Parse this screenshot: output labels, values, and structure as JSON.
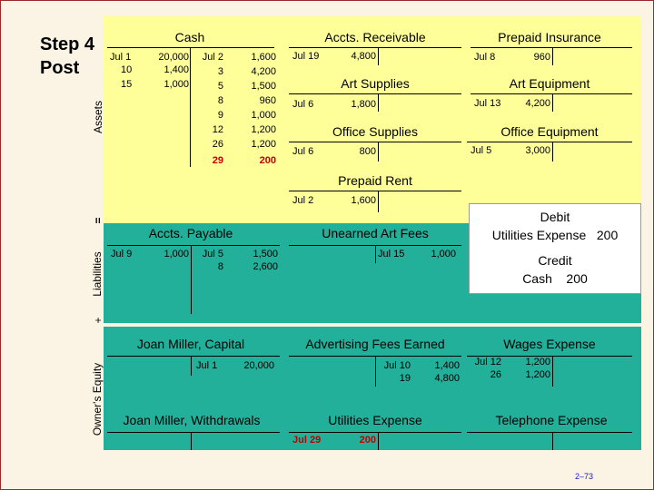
{
  "step": {
    "line1": "Step 4",
    "line2": "Post"
  },
  "side_labels": {
    "assets": "Assets",
    "equals": "=",
    "liabilities": "Liabilities",
    "plus": "+",
    "equity": "Owner's Equity"
  },
  "accounts": {
    "cash": {
      "title": "Cash",
      "debit_dates": [
        "Jul 1",
        "10",
        "15"
      ],
      "debit_amounts": [
        "20,000",
        "1,400",
        "1,000"
      ],
      "credit_dates": [
        "Jul 2",
        "3",
        "5",
        "8",
        "9",
        "12",
        "26"
      ],
      "credit_amounts": [
        "1,600",
        "4,200",
        "1,500",
        "960",
        "1,000",
        "1,200",
        "1,200"
      ],
      "new_credit_date": "29",
      "new_credit_amount": "200"
    },
    "accts_receivable": {
      "title": "Accts. Receivable",
      "debit_date": "Jul 19",
      "debit_amount": "4,800"
    },
    "prepaid_insurance": {
      "title": "Prepaid Insurance",
      "debit_date": "Jul 8",
      "debit_amount": "960"
    },
    "art_supplies": {
      "title": "Art Supplies",
      "debit_date": "Jul 6",
      "debit_amount": "1,800"
    },
    "art_equipment": {
      "title": "Art Equipment",
      "debit_date": "Jul 13",
      "debit_amount": "4,200"
    },
    "office_supplies": {
      "title": "Office Supplies",
      "debit_date": "Jul 6",
      "debit_amount": "800"
    },
    "office_equipment": {
      "title": "Office Equipment",
      "debit_date": "Jul 5",
      "debit_amount": "3,000"
    },
    "prepaid_rent": {
      "title": "Prepaid Rent",
      "debit_date": "Jul 2",
      "debit_amount": "1,600"
    },
    "accts_payable": {
      "title": "Accts. Payable",
      "debit_date": "Jul 9",
      "debit_amount": "1,000",
      "credit_dates": [
        "Jul 5",
        "8"
      ],
      "credit_amounts": [
        "1,500",
        "2,600"
      ]
    },
    "unearned_art_fees": {
      "title": "Unearned Art Fees",
      "credit_date": "Jul 15",
      "credit_amount": "1,000"
    },
    "capital": {
      "title": "Joan Miller, Capital",
      "credit_date": "Jul 1",
      "credit_amount": "20,000"
    },
    "advertising_fees": {
      "title": "Advertising Fees Earned",
      "credit_dates": [
        "Jul 10",
        "19"
      ],
      "credit_amounts": [
        "1,400",
        "4,800"
      ]
    },
    "wages_expense": {
      "title": "Wages Expense",
      "debit_dates": [
        "Jul 12",
        "26"
      ],
      "debit_amounts": [
        "1,200",
        "1,200"
      ]
    },
    "withdrawals": {
      "title": "Joan Miller, Withdrawals"
    },
    "utilities_expense": {
      "title": "Utilities Expense",
      "debit_date": "Jul 29",
      "debit_amount": "200"
    },
    "telephone_expense": {
      "title": "Telephone Expense"
    }
  },
  "note": {
    "debit_heading": "Debit",
    "debit_line": "Utilities Expense   200",
    "credit_heading": "Credit",
    "credit_line": "Cash    200"
  },
  "page_number": "2–73"
}
